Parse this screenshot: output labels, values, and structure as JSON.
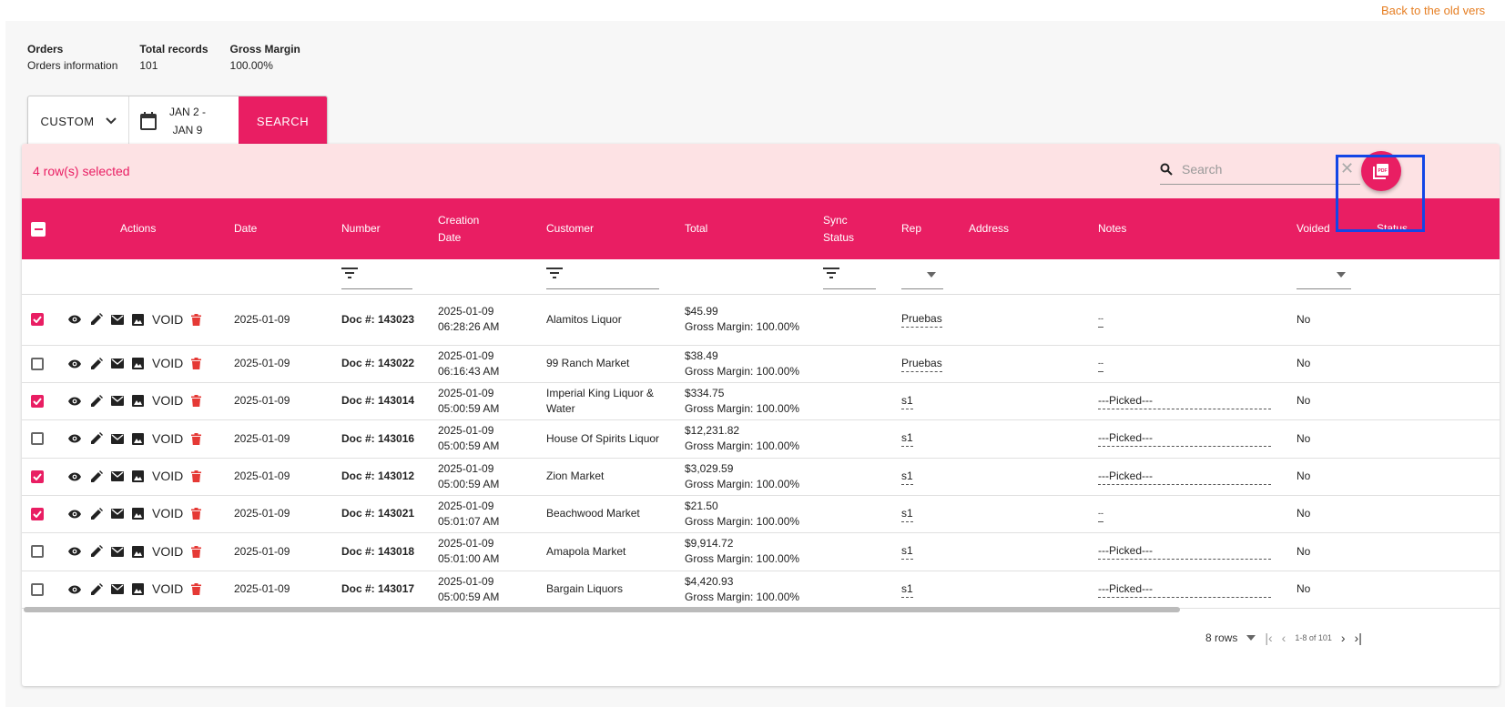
{
  "back_link": "Back to the old vers",
  "summary": [
    {
      "label": "Orders",
      "value": "Orders information"
    },
    {
      "label": "Total records",
      "value": "101"
    },
    {
      "label": "Gross Margin",
      "value": "100.00%"
    }
  ],
  "filter": {
    "range_select": "CUSTOM",
    "date_line1": "JAN 2 -",
    "date_line2": "JAN 9",
    "search_button": "SEARCH"
  },
  "toolbar": {
    "selected_text": "4 row(s) selected",
    "search_placeholder": "Search"
  },
  "columns": {
    "actions": "Actions",
    "date": "Date",
    "number": "Number",
    "creation_1": "Creation",
    "creation_2": "Date",
    "customer": "Customer",
    "total": "Total",
    "sync_1": "Sync",
    "sync_2": "Status",
    "rep": "Rep",
    "address": "Address",
    "notes": "Notes",
    "voided": "Voided",
    "status": "Status"
  },
  "void_label": "VOID",
  "rows": [
    {
      "checked": true,
      "date": "2025-01-09",
      "number": "Doc #: 143023",
      "cd1": "2025-01-09",
      "cd2": "06:28:26 AM",
      "customer": "Alamitos Liquor",
      "total": "$45.99",
      "margin": "Gross Margin: 100.00%",
      "rep": "Pruebas",
      "notes": "--",
      "voided": "No"
    },
    {
      "checked": false,
      "date": "2025-01-09",
      "number": "Doc #: 143022",
      "cd1": "2025-01-09",
      "cd2": "06:16:43 AM",
      "customer": "99 Ranch Market",
      "total": "$38.49",
      "margin": "Gross Margin: 100.00%",
      "rep": "Pruebas",
      "notes": "--",
      "voided": "No"
    },
    {
      "checked": true,
      "date": "2025-01-09",
      "number": "Doc #: 143014",
      "cd1": "2025-01-09",
      "cd2": "05:00:59 AM",
      "customer": "Imperial King Liquor & Water",
      "total": "$334.75",
      "margin": "Gross Margin: 100.00%",
      "rep": "s1",
      "notes": "---Picked---",
      "voided": "No"
    },
    {
      "checked": false,
      "date": "2025-01-09",
      "number": "Doc #: 143016",
      "cd1": "2025-01-09",
      "cd2": "05:00:59 AM",
      "customer": "House Of Spirits Liquor",
      "total": "$12,231.82",
      "margin": "Gross Margin: 100.00%",
      "rep": "s1",
      "notes": "---Picked---",
      "voided": "No"
    },
    {
      "checked": true,
      "date": "2025-01-09",
      "number": "Doc #: 143012",
      "cd1": "2025-01-09",
      "cd2": "05:00:59 AM",
      "customer": "Zion Market",
      "total": "$3,029.59",
      "margin": "Gross Margin: 100.00%",
      "rep": "s1",
      "notes": "---Picked---",
      "voided": "No"
    },
    {
      "checked": true,
      "date": "2025-01-09",
      "number": "Doc #: 143021",
      "cd1": "2025-01-09",
      "cd2": "05:01:07 AM",
      "customer": "Beachwood Market",
      "total": "$21.50",
      "margin": "Gross Margin: 100.00%",
      "rep": "s1",
      "notes": "--",
      "voided": "No"
    },
    {
      "checked": false,
      "date": "2025-01-09",
      "number": "Doc #: 143018",
      "cd1": "2025-01-09",
      "cd2": "05:01:00 AM",
      "customer": "Amapola Market",
      "total": "$9,914.72",
      "margin": "Gross Margin: 100.00%",
      "rep": "s1",
      "notes": "---Picked---",
      "voided": "No"
    },
    {
      "checked": false,
      "date": "2025-01-09",
      "number": "Doc #: 143017",
      "cd1": "2025-01-09",
      "cd2": "05:00:59 AM",
      "customer": "Bargain Liquors",
      "total": "$4,420.93",
      "margin": "Gross Margin: 100.00%",
      "rep": "s1",
      "notes": "---Picked---",
      "voided": "No"
    }
  ],
  "pager": {
    "rows_per_page": "8 rows",
    "range": "1-8 of 101"
  },
  "colors": {
    "accent": "#e91e63",
    "selection_bg": "#fde2e4",
    "link": "#e67e22",
    "highlight": "#1346e6"
  }
}
